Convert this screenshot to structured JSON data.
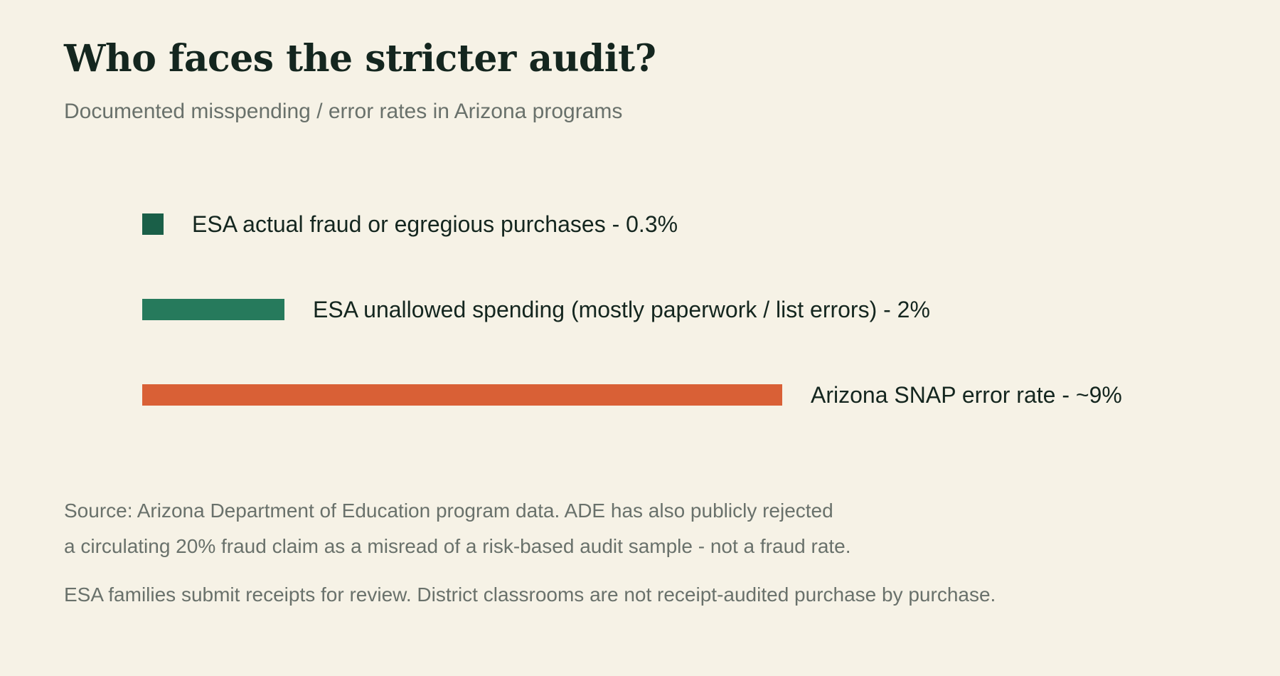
{
  "header": {
    "title": "Who faces the stricter audit?",
    "subtitle": "Documented misspending / error rates in Arizona programs"
  },
  "chart_data": {
    "type": "bar",
    "orientation": "horizontal",
    "title": "Who faces the stricter audit?",
    "subtitle": "Documented misspending / error rates in Arizona programs",
    "xlabel": "",
    "ylabel": "",
    "unit": "%",
    "xlim": [
      0,
      9
    ],
    "grid": false,
    "legend": "none",
    "categories": [
      "ESA actual fraud or egregious purchases",
      "ESA unallowed spending (mostly paperwork / list errors)",
      "Arizona SNAP error rate"
    ],
    "values": [
      0.3,
      2,
      9
    ],
    "data_labels": [
      "ESA actual fraud or egregious purchases - 0.3%",
      "ESA unallowed spending (mostly paperwork / list errors) - 2%",
      "Arizona SNAP error rate - ~9%"
    ],
    "colors": [
      "#1a5f48",
      "#267a5c",
      "#d96036"
    ]
  },
  "footer": {
    "source_line1": "Source: Arizona Department of Education program data. ADE has also publicly rejected",
    "source_line2": "a circulating 20% fraud claim as a misread of a risk-based audit sample - not a fraud rate.",
    "note": "ESA families submit receipts for review. District classrooms are not receipt-audited purchase by purchase."
  }
}
